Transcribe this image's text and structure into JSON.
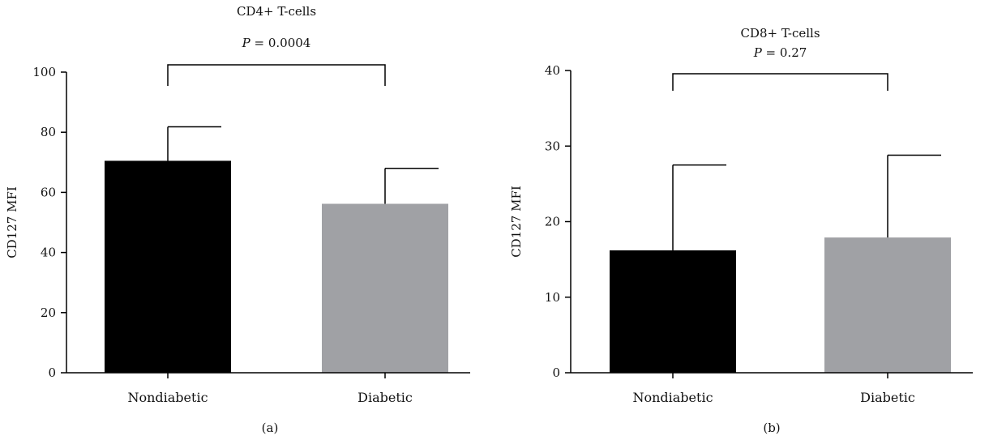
{
  "chart_data": [
    {
      "type": "bar",
      "panel_label": "(a)",
      "title": "CD4+ T-cells",
      "p_value_label": "P",
      "p_value_text": " = 0.0004",
      "ylabel": "CD127 MFI",
      "xlabel": "",
      "categories": [
        "Nondiabetic",
        "Diabetic"
      ],
      "values": [
        70.5,
        56.2
      ],
      "error_upper": [
        81.8,
        68.0
      ],
      "bar_colors": [
        "#000000",
        "#a0a1a5"
      ],
      "ylim": [
        0,
        100
      ],
      "yticks": [
        0,
        20,
        40,
        60,
        80,
        100
      ],
      "comparison_bracket": [
        "Nondiabetic",
        "Diabetic"
      ],
      "grid": false,
      "legend": "none"
    },
    {
      "type": "bar",
      "panel_label": "(b)",
      "title": "CD8+ T-cells",
      "p_value_label": "P",
      "p_value_text": " = 0.27",
      "ylabel": "CD127 MFI",
      "xlabel": "",
      "categories": [
        "Nondiabetic",
        "Diabetic"
      ],
      "values": [
        16.2,
        17.9
      ],
      "error_upper": [
        27.5,
        28.8
      ],
      "bar_colors": [
        "#000000",
        "#a0a1a5"
      ],
      "ylim": [
        0,
        40
      ],
      "yticks": [
        0,
        10,
        20,
        30,
        40
      ],
      "comparison_bracket": [
        "Nondiabetic",
        "Diabetic"
      ],
      "grid": false,
      "legend": "none"
    }
  ]
}
